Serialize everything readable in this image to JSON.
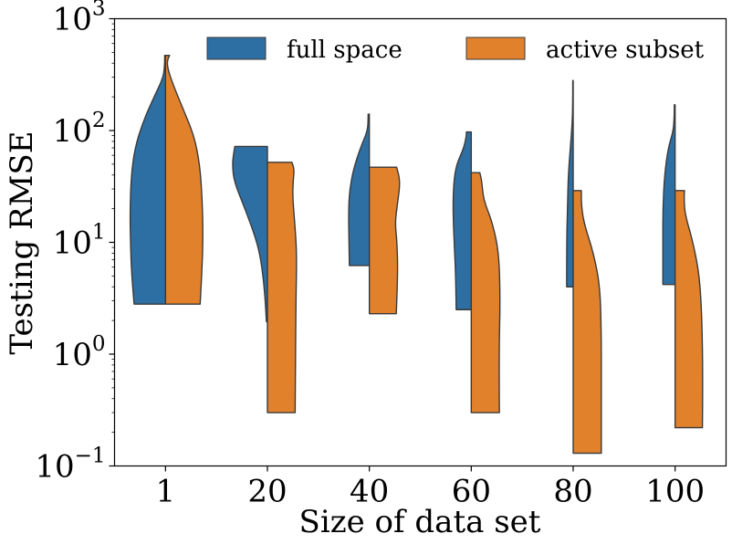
{
  "chart_data": {
    "type": "violin",
    "title": "",
    "xlabel": "Size of data set",
    "ylabel": "Testing RMSE",
    "yscale": "log",
    "ylim": [
      0.1,
      1000
    ],
    "ytick_values": [
      0.1,
      1,
      10,
      100,
      1000
    ],
    "ytick_labels": [
      {
        "base": "10",
        "exp": "−1"
      },
      {
        "base": "10",
        "exp": "0"
      },
      {
        "base": "10",
        "exp": "1"
      },
      {
        "base": "10",
        "exp": "2"
      },
      {
        "base": "10",
        "exp": "3"
      }
    ],
    "categories": [
      "1",
      "20",
      "40",
      "60",
      "80",
      "100"
    ],
    "legend_position": "top",
    "series": [
      {
        "name": "full space",
        "color": "#2e6fa3",
        "side": "left",
        "violins": [
          {
            "min": 2.8,
            "max": 470,
            "profile": [
              [
                2.8,
                0.77
              ],
              [
                5,
                0.83
              ],
              [
                10,
                0.86
              ],
              [
                20,
                0.87
              ],
              [
                40,
                0.84
              ],
              [
                70,
                0.75
              ],
              [
                120,
                0.55
              ],
              [
                200,
                0.28
              ],
              [
                300,
                0.05
              ],
              [
                400,
                0.02
              ],
              [
                470,
                0.02
              ]
            ]
          },
          {
            "min": 1.95,
            "max": 72,
            "profile": [
              [
                1.95,
                0.025
              ],
              [
                3,
                0.05
              ],
              [
                6,
                0.13
              ],
              [
                10,
                0.25
              ],
              [
                20,
                0.55
              ],
              [
                35,
                0.82
              ],
              [
                50,
                0.86
              ],
              [
                62,
                0.83
              ],
              [
                72,
                0.8
              ]
            ]
          },
          {
            "min": 6.2,
            "max": 140,
            "profile": [
              [
                6.2,
                0.49
              ],
              [
                10,
                0.5
              ],
              [
                20,
                0.51
              ],
              [
                30,
                0.48
              ],
              [
                45,
                0.39
              ],
              [
                70,
                0.22
              ],
              [
                100,
                0.04
              ],
              [
                130,
                0.03
              ],
              [
                140,
                0.03
              ]
            ]
          },
          {
            "min": 2.5,
            "max": 97,
            "profile": [
              [
                2.5,
                0.37
              ],
              [
                5,
                0.38
              ],
              [
                10,
                0.42
              ],
              [
                20,
                0.45
              ],
              [
                35,
                0.43
              ],
              [
                50,
                0.36
              ],
              [
                70,
                0.18
              ],
              [
                90,
                0.12
              ],
              [
                97,
                0.12
              ]
            ]
          },
          {
            "min": 4.0,
            "max": 280,
            "profile": [
              [
                4,
                0.16
              ],
              [
                10,
                0.16
              ],
              [
                20,
                0.14
              ],
              [
                40,
                0.12
              ],
              [
                70,
                0.07
              ],
              [
                120,
                0.02
              ],
              [
                200,
                0.01
              ],
              [
                280,
                0.01
              ]
            ]
          },
          {
            "min": 4.2,
            "max": 170,
            "profile": [
              [
                4.2,
                0.3
              ],
              [
                10,
                0.3
              ],
              [
                20,
                0.3
              ],
              [
                40,
                0.26
              ],
              [
                70,
                0.17
              ],
              [
                100,
                0.04
              ],
              [
                140,
                0.02
              ],
              [
                170,
                0.02
              ]
            ]
          }
        ]
      },
      {
        "name": "active subset",
        "color": "#e1812c",
        "side": "right",
        "violins": [
          {
            "min": 2.8,
            "max": 470,
            "profile": [
              [
                2.8,
                0.85
              ],
              [
                6,
                0.9
              ],
              [
                12,
                0.92
              ],
              [
                25,
                0.9
              ],
              [
                50,
                0.84
              ],
              [
                90,
                0.7
              ],
              [
                150,
                0.45
              ],
              [
                250,
                0.2
              ],
              [
                350,
                0.06
              ],
              [
                420,
                0.04
              ],
              [
                470,
                0.1
              ]
            ]
          },
          {
            "min": 0.3,
            "max": 52,
            "profile": [
              [
                0.3,
                0.68
              ],
              [
                1,
                0.69
              ],
              [
                3,
                0.7
              ],
              [
                8,
                0.72
              ],
              [
                15,
                0.67
              ],
              [
                25,
                0.62
              ],
              [
                35,
                0.63
              ],
              [
                45,
                0.66
              ],
              [
                52,
                0.6
              ]
            ]
          },
          {
            "min": 2.3,
            "max": 47,
            "profile": [
              [
                2.3,
                0.66
              ],
              [
                5,
                0.7
              ],
              [
                10,
                0.68
              ],
              [
                15,
                0.63
              ],
              [
                22,
                0.69
              ],
              [
                35,
                0.76
              ],
              [
                47,
                0.67
              ]
            ]
          },
          {
            "min": 0.3,
            "max": 42,
            "profile": [
              [
                0.3,
                0.69
              ],
              [
                1,
                0.68
              ],
              [
                3,
                0.71
              ],
              [
                8,
                0.68
              ],
              [
                15,
                0.52
              ],
              [
                24,
                0.3
              ],
              [
                35,
                0.26
              ],
              [
                42,
                0.21
              ]
            ]
          },
          {
            "min": 0.13,
            "max": 29,
            "profile": [
              [
                0.13,
                0.69
              ],
              [
                0.5,
                0.69
              ],
              [
                1.5,
                0.69
              ],
              [
                4,
                0.66
              ],
              [
                8,
                0.5
              ],
              [
                15,
                0.26
              ],
              [
                22,
                0.2
              ],
              [
                29,
                0.2
              ]
            ]
          },
          {
            "min": 0.22,
            "max": 29,
            "profile": [
              [
                0.22,
                0.67
              ],
              [
                0.6,
                0.68
              ],
              [
                2,
                0.66
              ],
              [
                5,
                0.6
              ],
              [
                10,
                0.44
              ],
              [
                18,
                0.24
              ],
              [
                25,
                0.22
              ],
              [
                29,
                0.23
              ]
            ]
          }
        ]
      }
    ]
  }
}
